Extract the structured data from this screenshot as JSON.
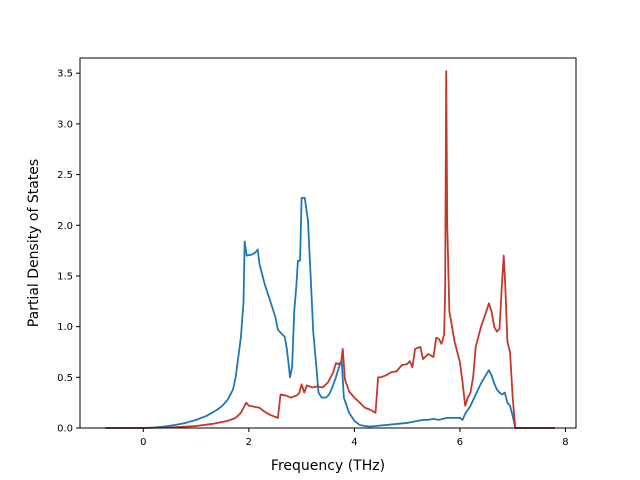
{
  "chart_data": {
    "type": "line",
    "title": "",
    "xlabel": "Frequency (THz)",
    "ylabel": "Partial Density of States",
    "xlim": [
      -1.2,
      8.2
    ],
    "ylim": [
      0,
      3.65
    ],
    "xticks": [
      0,
      2,
      4,
      6,
      8
    ],
    "yticks": [
      0.0,
      0.5,
      1.0,
      1.5,
      2.0,
      2.5,
      3.0,
      3.5
    ],
    "grid": false,
    "legend": "none",
    "series": [
      {
        "color": "#1f77b4",
        "points": [
          [
            -0.72,
            0
          ],
          [
            0,
            0
          ],
          [
            0.2,
            0.005
          ],
          [
            0.4,
            0.015
          ],
          [
            0.6,
            0.03
          ],
          [
            0.8,
            0.05
          ],
          [
            1.0,
            0.08
          ],
          [
            1.2,
            0.12
          ],
          [
            1.4,
            0.18
          ],
          [
            1.5,
            0.22
          ],
          [
            1.6,
            0.28
          ],
          [
            1.65,
            0.33
          ],
          [
            1.7,
            0.38
          ],
          [
            1.75,
            0.5
          ],
          [
            1.8,
            0.7
          ],
          [
            1.85,
            0.9
          ],
          [
            1.9,
            1.25
          ],
          [
            1.92,
            1.84
          ],
          [
            1.96,
            1.7
          ],
          [
            2.05,
            1.71
          ],
          [
            2.12,
            1.73
          ],
          [
            2.17,
            1.76
          ],
          [
            2.2,
            1.62
          ],
          [
            2.3,
            1.42
          ],
          [
            2.4,
            1.26
          ],
          [
            2.5,
            1.1
          ],
          [
            2.55,
            0.97
          ],
          [
            2.62,
            0.93
          ],
          [
            2.68,
            0.9
          ],
          [
            2.72,
            0.78
          ],
          [
            2.76,
            0.6
          ],
          [
            2.78,
            0.5
          ],
          [
            2.82,
            0.6
          ],
          [
            2.86,
            1.15
          ],
          [
            2.9,
            1.4
          ],
          [
            2.93,
            1.65
          ],
          [
            2.97,
            1.65
          ],
          [
            3.0,
            2.27
          ],
          [
            3.06,
            2.27
          ],
          [
            3.12,
            2.05
          ],
          [
            3.18,
            1.4
          ],
          [
            3.22,
            0.95
          ],
          [
            3.28,
            0.6
          ],
          [
            3.32,
            0.35
          ],
          [
            3.38,
            0.3
          ],
          [
            3.46,
            0.3
          ],
          [
            3.52,
            0.33
          ],
          [
            3.58,
            0.4
          ],
          [
            3.65,
            0.5
          ],
          [
            3.72,
            0.62
          ],
          [
            3.76,
            0.66
          ],
          [
            3.8,
            0.3
          ],
          [
            3.9,
            0.15
          ],
          [
            4.0,
            0.07
          ],
          [
            4.1,
            0.03
          ],
          [
            4.2,
            0.02
          ],
          [
            4.3,
            0.015
          ],
          [
            4.4,
            0.02
          ],
          [
            4.6,
            0.03
          ],
          [
            4.8,
            0.04
          ],
          [
            5.0,
            0.05
          ],
          [
            5.1,
            0.06
          ],
          [
            5.2,
            0.07
          ],
          [
            5.3,
            0.08
          ],
          [
            5.4,
            0.08
          ],
          [
            5.5,
            0.09
          ],
          [
            5.6,
            0.08
          ],
          [
            5.75,
            0.1
          ],
          [
            5.9,
            0.1
          ],
          [
            6.0,
            0.1
          ],
          [
            6.05,
            0.08
          ],
          [
            6.1,
            0.14
          ],
          [
            6.2,
            0.22
          ],
          [
            6.3,
            0.33
          ],
          [
            6.4,
            0.44
          ],
          [
            6.5,
            0.53
          ],
          [
            6.55,
            0.57
          ],
          [
            6.6,
            0.52
          ],
          [
            6.65,
            0.44
          ],
          [
            6.7,
            0.38
          ],
          [
            6.75,
            0.35
          ],
          [
            6.8,
            0.33
          ],
          [
            6.85,
            0.35
          ],
          [
            6.9,
            0.25
          ],
          [
            6.95,
            0.22
          ],
          [
            7.0,
            0.12
          ],
          [
            7.05,
            0
          ],
          [
            7.8,
            0
          ]
        ]
      },
      {
        "color": "#c0392b",
        "points": [
          [
            -0.72,
            0
          ],
          [
            0,
            0
          ],
          [
            0.5,
            0.005
          ],
          [
            1.0,
            0.02
          ],
          [
            1.3,
            0.04
          ],
          [
            1.6,
            0.07
          ],
          [
            1.75,
            0.1
          ],
          [
            1.85,
            0.15
          ],
          [
            1.9,
            0.2
          ],
          [
            1.95,
            0.25
          ],
          [
            2.0,
            0.22
          ],
          [
            2.2,
            0.2
          ],
          [
            2.3,
            0.16
          ],
          [
            2.4,
            0.13
          ],
          [
            2.5,
            0.11
          ],
          [
            2.55,
            0.1
          ],
          [
            2.6,
            0.33
          ],
          [
            2.7,
            0.32
          ],
          [
            2.8,
            0.3
          ],
          [
            2.9,
            0.32
          ],
          [
            2.95,
            0.34
          ],
          [
            3.0,
            0.43
          ],
          [
            3.05,
            0.35
          ],
          [
            3.1,
            0.42
          ],
          [
            3.2,
            0.4
          ],
          [
            3.3,
            0.41
          ],
          [
            3.4,
            0.4
          ],
          [
            3.5,
            0.45
          ],
          [
            3.6,
            0.55
          ],
          [
            3.65,
            0.64
          ],
          [
            3.7,
            0.63
          ],
          [
            3.75,
            0.65
          ],
          [
            3.78,
            0.78
          ],
          [
            3.82,
            0.48
          ],
          [
            3.9,
            0.36
          ],
          [
            4.0,
            0.3
          ],
          [
            4.1,
            0.25
          ],
          [
            4.2,
            0.2
          ],
          [
            4.3,
            0.18
          ],
          [
            4.4,
            0.15
          ],
          [
            4.45,
            0.5
          ],
          [
            4.5,
            0.5
          ],
          [
            4.6,
            0.52
          ],
          [
            4.7,
            0.55
          ],
          [
            4.8,
            0.56
          ],
          [
            4.9,
            0.62
          ],
          [
            5.0,
            0.63
          ],
          [
            5.05,
            0.66
          ],
          [
            5.1,
            0.6
          ],
          [
            5.15,
            0.78
          ],
          [
            5.25,
            0.8
          ],
          [
            5.3,
            0.68
          ],
          [
            5.4,
            0.73
          ],
          [
            5.5,
            0.7
          ],
          [
            5.55,
            0.89
          ],
          [
            5.6,
            0.88
          ],
          [
            5.65,
            0.83
          ],
          [
            5.7,
            0.92
          ],
          [
            5.72,
            1.35
          ],
          [
            5.74,
            3.52
          ],
          [
            5.76,
            2.0
          ],
          [
            5.8,
            1.15
          ],
          [
            5.9,
            0.85
          ],
          [
            6.0,
            0.65
          ],
          [
            6.05,
            0.45
          ],
          [
            6.1,
            0.22
          ],
          [
            6.15,
            0.3
          ],
          [
            6.2,
            0.35
          ],
          [
            6.25,
            0.5
          ],
          [
            6.3,
            0.8
          ],
          [
            6.4,
            1.0
          ],
          [
            6.5,
            1.15
          ],
          [
            6.55,
            1.23
          ],
          [
            6.6,
            1.15
          ],
          [
            6.65,
            1.0
          ],
          [
            6.7,
            0.95
          ],
          [
            6.75,
            0.98
          ],
          [
            6.8,
            1.45
          ],
          [
            6.83,
            1.7
          ],
          [
            6.86,
            1.4
          ],
          [
            6.9,
            0.85
          ],
          [
            6.95,
            0.75
          ],
          [
            7.0,
            0.3
          ],
          [
            7.05,
            0
          ],
          [
            7.8,
            0
          ]
        ]
      }
    ]
  }
}
